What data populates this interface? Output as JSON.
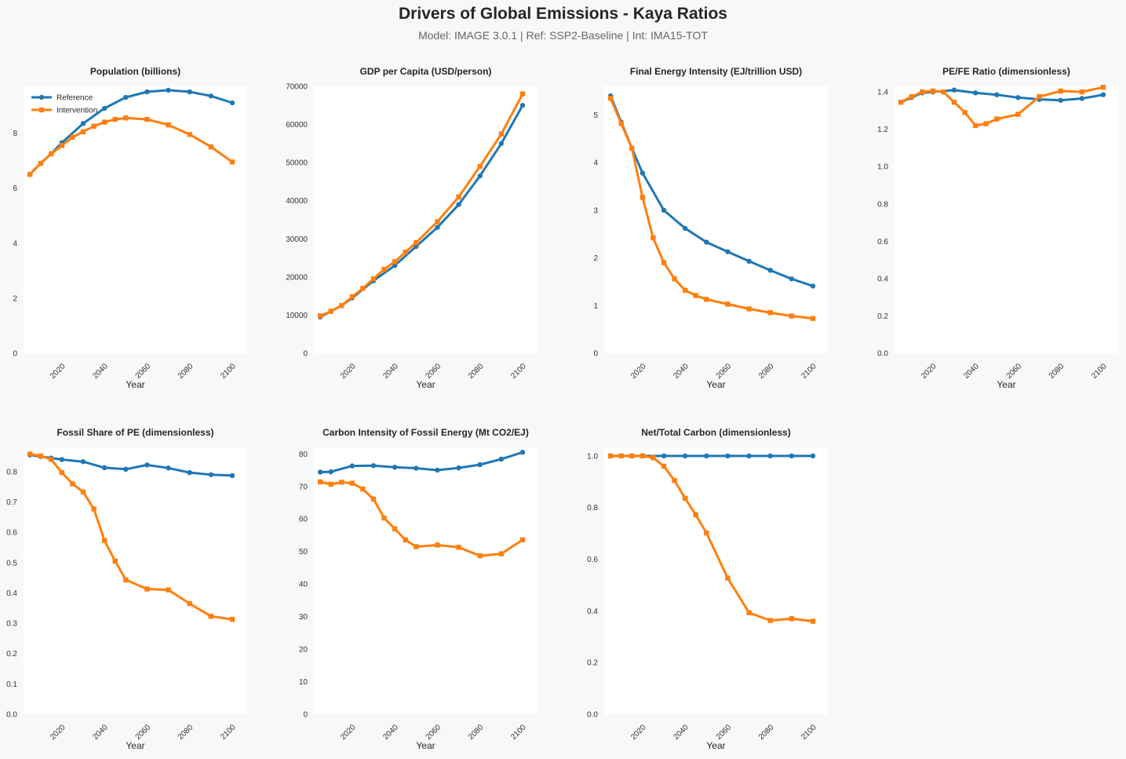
{
  "header": {
    "title": "Drivers of Global Emissions - Kaya Ratios",
    "subtitle": "Model: IMAGE 3.0.1  |  Ref: SSP2-Baseline  |  Int: IMA15-TOT"
  },
  "colors": {
    "reference": "#1f77b4",
    "intervention": "#ff7f0e",
    "plot_bg": "#ffffff",
    "page_bg": "#f7f8fa"
  },
  "chart_data": [
    {
      "type": "line",
      "title": "Population (billions)",
      "xlabel": "Year",
      "ylabel": "",
      "xlim": [
        2002,
        2107
      ],
      "ylim": [
        0,
        9.7
      ],
      "xticks": [
        2020,
        2040,
        2060,
        2080,
        2100
      ],
      "yticks": [
        0,
        2,
        4,
        6,
        8
      ],
      "ytick_labels": [
        "0",
        "2",
        "4",
        "6",
        "8"
      ],
      "legend": {
        "placement": "top-left",
        "entries": [
          "Reference",
          "Intervention"
        ]
      },
      "series": [
        {
          "name": "Reference",
          "marker": "circle",
          "x": [
            2005,
            2010,
            2015,
            2020,
            2030,
            2040,
            2050,
            2060,
            2070,
            2080,
            2090,
            2100
          ],
          "y": [
            6.5,
            6.9,
            7.25,
            7.65,
            8.35,
            8.9,
            9.3,
            9.5,
            9.56,
            9.5,
            9.35,
            9.1
          ]
        },
        {
          "name": "Intervention",
          "marker": "square",
          "x": [
            2005,
            2010,
            2015,
            2020,
            2025,
            2030,
            2035,
            2040,
            2045,
            2050,
            2060,
            2070,
            2080,
            2090,
            2100
          ],
          "y": [
            6.5,
            6.9,
            7.25,
            7.55,
            7.85,
            8.05,
            8.25,
            8.4,
            8.5,
            8.55,
            8.5,
            8.3,
            7.95,
            7.5,
            6.95
          ]
        }
      ]
    },
    {
      "type": "line",
      "title": "GDP per Capita (USD/person)",
      "xlabel": "Year",
      "ylabel": "",
      "xlim": [
        2002,
        2107
      ],
      "ylim": [
        0,
        70000
      ],
      "xticks": [
        2020,
        2040,
        2060,
        2080,
        2100
      ],
      "yticks": [
        0,
        10000,
        20000,
        30000,
        40000,
        50000,
        60000,
        70000
      ],
      "ytick_labels": [
        "0",
        "10000",
        "20000",
        "30000",
        "40000",
        "50000",
        "60000",
        "70000"
      ],
      "series": [
        {
          "name": "Reference",
          "marker": "circle",
          "x": [
            2005,
            2010,
            2015,
            2020,
            2030,
            2040,
            2050,
            2060,
            2070,
            2080,
            2090,
            2100
          ],
          "y": [
            9500,
            11000,
            12500,
            14500,
            19000,
            23000,
            28000,
            33000,
            39000,
            46500,
            55000,
            65000
          ]
        },
        {
          "name": "Intervention",
          "marker": "square",
          "x": [
            2005,
            2010,
            2015,
            2020,
            2025,
            2030,
            2035,
            2040,
            2045,
            2050,
            2060,
            2070,
            2080,
            2090,
            2100
          ],
          "y": [
            9800,
            11000,
            12500,
            14800,
            17000,
            19500,
            22000,
            24000,
            26500,
            29000,
            34500,
            41000,
            49000,
            57500,
            68000
          ]
        }
      ]
    },
    {
      "type": "line",
      "title": "Final Energy Intensity (EJ/trillion USD)",
      "xlabel": "Year",
      "ylabel": "",
      "xlim": [
        2002,
        2107
      ],
      "ylim": [
        0,
        5.6
      ],
      "xticks": [
        2020,
        2040,
        2060,
        2080,
        2100
      ],
      "yticks": [
        0,
        1,
        2,
        3,
        4,
        5
      ],
      "ytick_labels": [
        "0",
        "1",
        "2",
        "3",
        "4",
        "5"
      ],
      "series": [
        {
          "name": "Reference",
          "marker": "circle",
          "x": [
            2005,
            2010,
            2015,
            2020,
            2030,
            2040,
            2050,
            2060,
            2070,
            2080,
            2090,
            2100
          ],
          "y": [
            5.4,
            4.85,
            4.3,
            3.78,
            3.0,
            2.62,
            2.33,
            2.13,
            1.93,
            1.74,
            1.56,
            1.41
          ]
        },
        {
          "name": "Intervention",
          "marker": "square",
          "x": [
            2005,
            2010,
            2015,
            2020,
            2025,
            2030,
            2035,
            2040,
            2045,
            2050,
            2060,
            2070,
            2080,
            2090,
            2100
          ],
          "y": [
            5.35,
            4.82,
            4.3,
            3.27,
            2.42,
            1.9,
            1.56,
            1.32,
            1.21,
            1.13,
            1.03,
            0.93,
            0.85,
            0.78,
            0.73
          ]
        }
      ]
    },
    {
      "type": "line",
      "title": "PE/FE Ratio (dimensionless)",
      "xlabel": "Year",
      "ylabel": "",
      "xlim": [
        2002,
        2107
      ],
      "ylim": [
        0,
        1.43
      ],
      "xticks": [
        2020,
        2040,
        2060,
        2080,
        2100
      ],
      "yticks": [
        0,
        0.2,
        0.4,
        0.6,
        0.8,
        1.0,
        1.2,
        1.4
      ],
      "ytick_labels": [
        "0.0",
        "0.2",
        "0.4",
        "0.6",
        "0.8",
        "1.0",
        "1.2",
        "1.4"
      ],
      "series": [
        {
          "name": "Reference",
          "marker": "circle",
          "x": [
            2005,
            2010,
            2015,
            2020,
            2030,
            2040,
            2050,
            2060,
            2070,
            2080,
            2090,
            2100
          ],
          "y": [
            1.345,
            1.37,
            1.395,
            1.4,
            1.41,
            1.395,
            1.385,
            1.37,
            1.36,
            1.355,
            1.365,
            1.385
          ]
        },
        {
          "name": "Intervention",
          "marker": "square",
          "x": [
            2005,
            2010,
            2015,
            2020,
            2025,
            2030,
            2035,
            2040,
            2045,
            2050,
            2060,
            2070,
            2080,
            2090,
            2100
          ],
          "y": [
            1.345,
            1.375,
            1.4,
            1.405,
            1.4,
            1.345,
            1.29,
            1.22,
            1.23,
            1.255,
            1.28,
            1.375,
            1.405,
            1.4,
            1.425
          ]
        }
      ]
    },
    {
      "type": "line",
      "title": "Fossil Share of PE (dimensionless)",
      "xlabel": "Year",
      "ylabel": "",
      "xlim": [
        2002,
        2107
      ],
      "ylim": [
        0,
        0.88
      ],
      "xticks": [
        2020,
        2040,
        2060,
        2080,
        2100
      ],
      "yticks": [
        0,
        0.1,
        0.2,
        0.3,
        0.4,
        0.5,
        0.6,
        0.7,
        0.8
      ],
      "ytick_labels": [
        "0.0",
        "0.1",
        "0.2",
        "0.3",
        "0.4",
        "0.5",
        "0.6",
        "0.7",
        "0.8"
      ],
      "series": [
        {
          "name": "Reference",
          "marker": "circle",
          "x": [
            2005,
            2010,
            2015,
            2020,
            2030,
            2040,
            2050,
            2060,
            2070,
            2080,
            2090,
            2100
          ],
          "y": [
            0.855,
            0.85,
            0.845,
            0.84,
            0.833,
            0.813,
            0.808,
            0.822,
            0.812,
            0.797,
            0.79,
            0.787
          ]
        },
        {
          "name": "Intervention",
          "marker": "square",
          "x": [
            2005,
            2010,
            2015,
            2020,
            2025,
            2030,
            2035,
            2040,
            2045,
            2050,
            2060,
            2070,
            2080,
            2090,
            2100
          ],
          "y": [
            0.858,
            0.852,
            0.84,
            0.797,
            0.76,
            0.733,
            0.677,
            0.573,
            0.505,
            0.443,
            0.413,
            0.41,
            0.365,
            0.323,
            0.313
          ]
        }
      ]
    },
    {
      "type": "line",
      "title": "Carbon Intensity of Fossil Energy (Mt CO2/EJ)",
      "xlabel": "Year",
      "ylabel": "",
      "xlim": [
        2002,
        2107
      ],
      "ylim": [
        0,
        82
      ],
      "xticks": [
        2020,
        2040,
        2060,
        2080,
        2100
      ],
      "yticks": [
        0,
        10,
        20,
        30,
        40,
        50,
        60,
        70,
        80
      ],
      "ytick_labels": [
        "0",
        "10",
        "20",
        "30",
        "40",
        "50",
        "60",
        "70",
        "80"
      ],
      "series": [
        {
          "name": "Reference",
          "marker": "circle",
          "x": [
            2005,
            2010,
            2020,
            2030,
            2040,
            2050,
            2060,
            2070,
            2080,
            2090,
            2100
          ],
          "y": [
            74.4,
            74.5,
            76.3,
            76.4,
            75.9,
            75.6,
            75.0,
            75.7,
            76.7,
            78.4,
            80.5
          ]
        },
        {
          "name": "Intervention",
          "marker": "square",
          "x": [
            2005,
            2010,
            2015,
            2020,
            2025,
            2030,
            2035,
            2040,
            2045,
            2050,
            2060,
            2070,
            2080,
            2090,
            2100
          ],
          "y": [
            71.4,
            70.7,
            71.3,
            71.0,
            69.2,
            66.1,
            60.3,
            57.0,
            53.6,
            51.5,
            52.0,
            51.3,
            48.7,
            49.3,
            53.6
          ]
        }
      ]
    },
    {
      "type": "line",
      "title": "Net/Total Carbon (dimensionless)",
      "xlabel": "Year",
      "ylabel": "",
      "xlim": [
        2002,
        2107
      ],
      "ylim": [
        0,
        1.033
      ],
      "xticks": [
        2020,
        2040,
        2060,
        2080,
        2100
      ],
      "yticks": [
        0,
        0.2,
        0.4,
        0.6,
        0.8,
        1.0
      ],
      "ytick_labels": [
        "0.0",
        "0.2",
        "0.4",
        "0.6",
        "0.8",
        "1.0"
      ],
      "series": [
        {
          "name": "Reference",
          "marker": "circle",
          "x": [
            2005,
            2010,
            2015,
            2020,
            2030,
            2040,
            2050,
            2060,
            2070,
            2080,
            2090,
            2100
          ],
          "y": [
            1.0,
            1.0,
            1.0,
            1.0,
            1.0,
            1.0,
            1.0,
            1.0,
            1.0,
            1.0,
            1.0,
            1.0
          ]
        },
        {
          "name": "Intervention",
          "marker": "square",
          "x": [
            2005,
            2010,
            2015,
            2020,
            2025,
            2030,
            2035,
            2040,
            2045,
            2050,
            2060,
            2070,
            2080,
            2090,
            2100
          ],
          "y": [
            1.0,
            1.0,
            1.0,
            1.0,
            0.993,
            0.96,
            0.905,
            0.836,
            0.772,
            0.702,
            0.527,
            0.393,
            0.363,
            0.37,
            0.36
          ]
        }
      ]
    }
  ]
}
